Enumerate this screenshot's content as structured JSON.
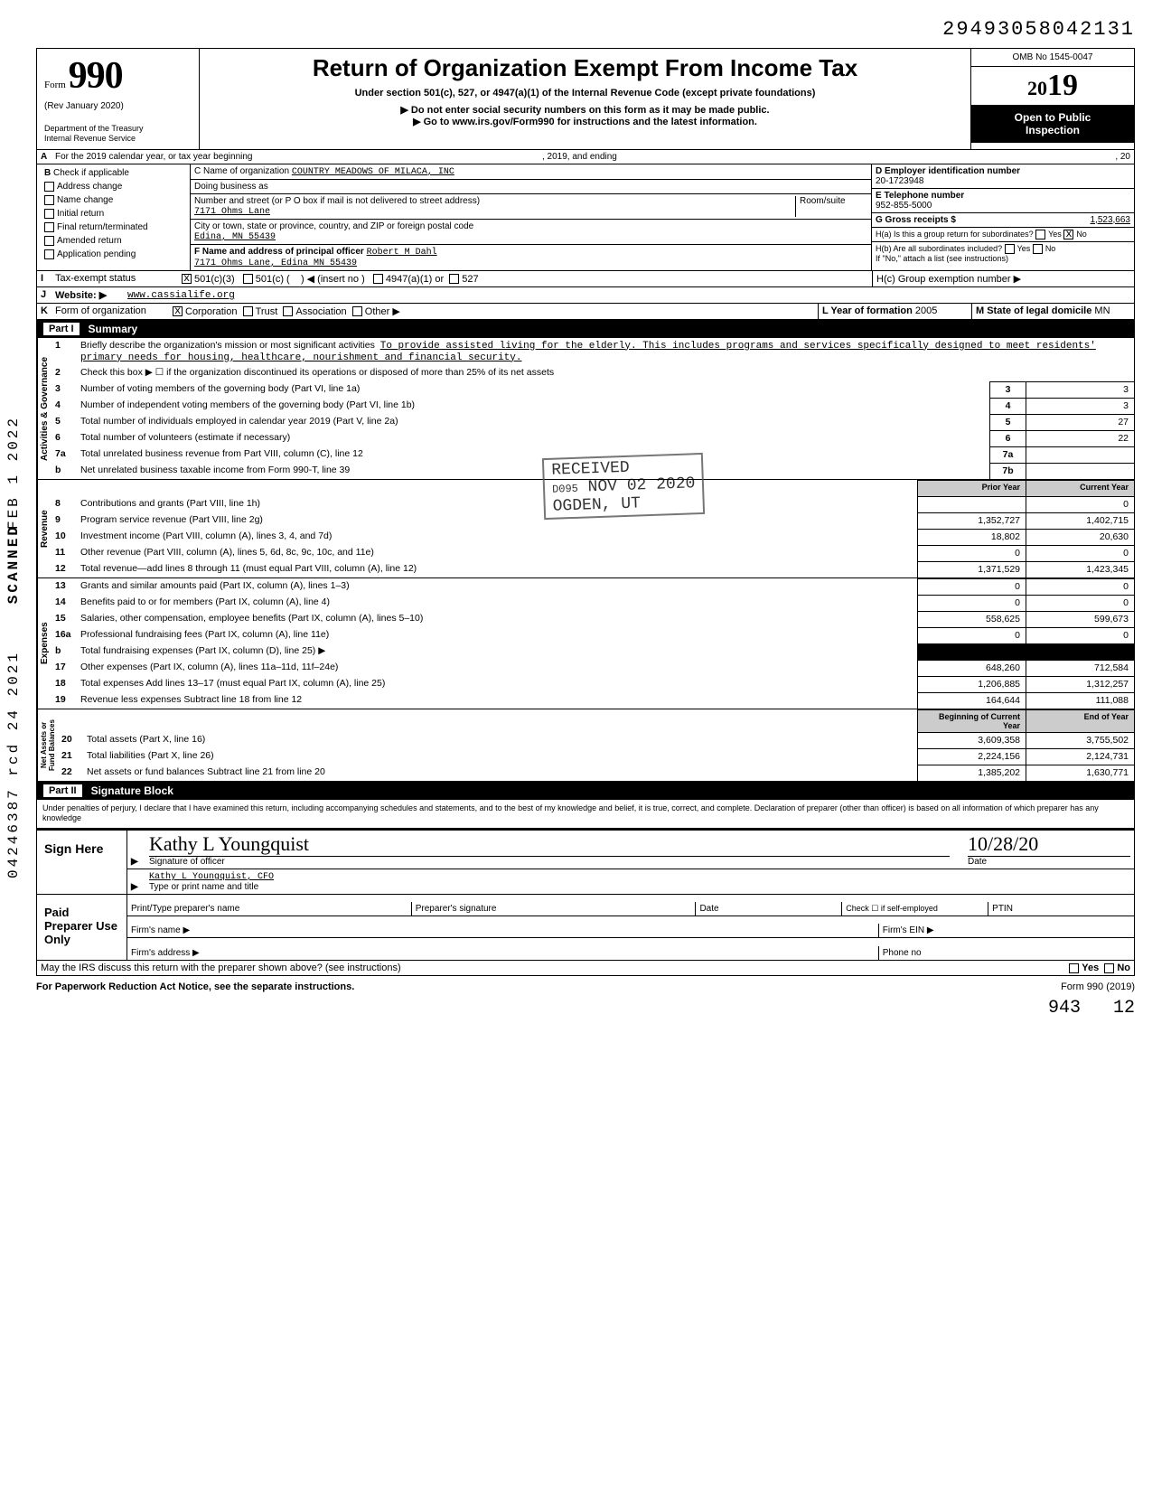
{
  "top_number": "29493058042131",
  "header": {
    "form_word": "Form",
    "form_num": "990",
    "rev": "(Rev January 2020)",
    "dept": "Department of the Treasury\nInternal Revenue Service",
    "title": "Return of Organization Exempt From Income Tax",
    "subtitle": "Under section 501(c), 527, or 4947(a)(1) of the Internal Revenue Code (except private foundations)",
    "warn1": "▶ Do not enter social security numbers on this form as it may be made public.",
    "warn2": "▶ Go to www.irs.gov/Form990 for instructions and the latest information.",
    "omb": "OMB No 1545-0047",
    "year": "2019",
    "open": "Open to Public Inspection"
  },
  "lineA": {
    "label": "For the 2019 calendar year, or tax year beginning",
    "mid": ", 2019, and ending",
    "end": ", 20"
  },
  "B": {
    "label": "Check if applicable",
    "options": [
      "Address change",
      "Name change",
      "Initial return",
      "Final return/terminated",
      "Amended return",
      "Application pending"
    ]
  },
  "C": {
    "name_label": "C Name of organization",
    "name": "COUNTRY MEADOWS OF MILACA, INC",
    "dba_label": "Doing business as",
    "addr_label": "Number and street (or P O box if mail is not delivered to street address)",
    "addr": "7171 Ohms Lane",
    "room_label": "Room/suite",
    "city_label": "City or town, state or province, country, and ZIP or foreign postal code",
    "city": "Edina, MN 55439",
    "F_label": "F Name and address of principal officer",
    "F_name": "Robert M Dahl",
    "F_addr": "7171 Ohms Lane, Edina MN 55439"
  },
  "D": {
    "ein_label": "D Employer identification number",
    "ein": "20-1723948",
    "tel_label": "E Telephone number",
    "tel": "952-855-5000",
    "gross_label": "G Gross receipts $",
    "gross": "1,523,663",
    "Ha": "H(a) Is this a group return for subordinates?",
    "Hb": "H(b) Are all subordinates included?",
    "Hb_note": "If \"No,\" attach a list (see instructions)",
    "Hc": "H(c) Group exemption number ▶",
    "yes": "Yes",
    "no": "No"
  },
  "I": {
    "label": "Tax-exempt status",
    "opt1": "501(c)(3)",
    "opt2": "501(c) (",
    "opt2b": ") ◀ (insert no )",
    "opt3": "4947(a)(1) or",
    "opt4": "527"
  },
  "J": {
    "label": "Website: ▶",
    "val": "www.cassialife.org"
  },
  "K": {
    "label": "Form of organization",
    "opts": [
      "Corporation",
      "Trust",
      "Association",
      "Other ▶"
    ],
    "L": "L Year of formation",
    "Lval": "2005",
    "M": "M State of legal domicile",
    "Mval": "MN"
  },
  "part1": {
    "num": "Part I",
    "title": "Summary"
  },
  "mission_lead": "Briefly describe the organization's mission or most significant activities",
  "mission": "To provide assisted living for the elderly. This includes programs and services specifically designed to meet residents' primary needs for housing, healthcare, nourishment and financial security.",
  "line2": "Check this box ▶ ☐ if the organization discontinued its operations or disposed of more than 25% of its net assets",
  "summary_lines": {
    "gov": [
      {
        "n": "3",
        "t": "Number of voting members of the governing body (Part VI, line 1a)",
        "k": "3",
        "v": "3"
      },
      {
        "n": "4",
        "t": "Number of independent voting members of the governing body (Part VI, line 1b)",
        "k": "4",
        "v": "3"
      },
      {
        "n": "5",
        "t": "Total number of individuals employed in calendar year 2019 (Part V, line 2a)",
        "k": "5",
        "v": "27"
      },
      {
        "n": "6",
        "t": "Total number of volunteers (estimate if necessary)",
        "k": "6",
        "v": "22"
      },
      {
        "n": "7a",
        "t": "Total unrelated business revenue from Part VIII, column (C), line 12",
        "k": "7a",
        "v": ""
      },
      {
        "n": "b",
        "t": "Net unrelated business taxable income from Form 990-T, line 39",
        "k": "7b",
        "v": ""
      }
    ],
    "rev_hdr_prior": "Prior Year",
    "rev_hdr_cur": "Current Year",
    "rev": [
      {
        "n": "8",
        "t": "Contributions and grants (Part VIII, line 1h)",
        "p": "",
        "c": "0"
      },
      {
        "n": "9",
        "t": "Program service revenue (Part VIII, line 2g)",
        "p": "1,352,727",
        "c": "1,402,715"
      },
      {
        "n": "10",
        "t": "Investment income (Part VIII, column (A), lines 3, 4, and 7d)",
        "p": "18,802",
        "c": "20,630"
      },
      {
        "n": "11",
        "t": "Other revenue (Part VIII, column (A), lines 5, 6d, 8c, 9c, 10c, and 11e)",
        "p": "0",
        "c": "0"
      },
      {
        "n": "12",
        "t": "Total revenue—add lines 8 through 11 (must equal Part VIII, column (A), line 12)",
        "p": "1,371,529",
        "c": "1,423,345"
      }
    ],
    "exp": [
      {
        "n": "13",
        "t": "Grants and similar amounts paid (Part IX, column (A), lines 1–3)",
        "p": "0",
        "c": "0"
      },
      {
        "n": "14",
        "t": "Benefits paid to or for members (Part IX, column (A), line 4)",
        "p": "0",
        "c": "0"
      },
      {
        "n": "15",
        "t": "Salaries, other compensation, employee benefits (Part IX, column (A), lines 5–10)",
        "p": "558,625",
        "c": "599,673"
      },
      {
        "n": "16a",
        "t": "Professional fundraising fees (Part IX, column (A), line 11e)",
        "p": "0",
        "c": "0"
      },
      {
        "n": "b",
        "t": "Total fundraising expenses (Part IX, column (D), line 25) ▶",
        "p": "BLACK",
        "c": "BLACK"
      },
      {
        "n": "17",
        "t": "Other expenses (Part IX, column (A), lines 11a–11d, 11f–24e)",
        "p": "648,260",
        "c": "712,584"
      },
      {
        "n": "18",
        "t": "Total expenses Add lines 13–17 (must equal Part IX, column (A), line 25)",
        "p": "1,206,885",
        "c": "1,312,257"
      },
      {
        "n": "19",
        "t": "Revenue less expenses Subtract line 18 from line 12",
        "p": "164,644",
        "c": "111,088"
      }
    ],
    "net_hdr_beg": "Beginning of Current Year",
    "net_hdr_end": "End of Year",
    "net": [
      {
        "n": "20",
        "t": "Total assets (Part X, line 16)",
        "p": "3,609,358",
        "c": "3,755,502"
      },
      {
        "n": "21",
        "t": "Total liabilities (Part X, line 26)",
        "p": "2,224,156",
        "c": "2,124,731"
      },
      {
        "n": "22",
        "t": "Net assets or fund balances Subtract line 21 from line 20",
        "p": "1,385,202",
        "c": "1,630,771"
      }
    ]
  },
  "tabs": {
    "gov": "Activities & Governance",
    "rev": "Revenue",
    "exp": "Expenses",
    "net": "Net Assets or\nFund Balances"
  },
  "part2": {
    "num": "Part II",
    "title": "Signature Block"
  },
  "perjury": "Under penalties of perjury, I declare that I have examined this return, including accompanying schedules and statements, and to the best of my knowledge and belief, it is true, correct, and complete. Declaration of preparer (other than officer) is based on all information of which preparer has any knowledge",
  "sign": {
    "here": "Sign Here",
    "sig_label": "Signature of officer",
    "sig_val": "Kathy L Youngquist",
    "date_label": "Date",
    "date_val": "10/28/20",
    "name_label": "Type or print name and title",
    "name_val": "Kathy L Youngquist, CFO"
  },
  "preparer": {
    "label": "Paid Preparer Use Only",
    "r1": [
      "Print/Type preparer's name",
      "Preparer's signature",
      "Date",
      "Check ☐ if self-employed",
      "PTIN"
    ],
    "r2a": "Firm's name ▶",
    "r2b": "Firm's EIN ▶",
    "r3a": "Firm's address ▶",
    "r3b": "Phone no"
  },
  "discuss": "May the IRS discuss this return with the preparer shown above? (see instructions)",
  "paperwork": "For Paperwork Reduction Act Notice, see the separate instructions.",
  "formfoot": "Form 990 (2019)",
  "stamps": {
    "received": "RECEIVED",
    "d095": "D095",
    "nov": "NOV 02 2020",
    "ogden": "OGDEN, UT"
  },
  "side": {
    "dln": "04246387 rcd 24 2021",
    "scanned": "SCANNED",
    "feb": "FEB 1 2022"
  },
  "hand": {
    "a": "943",
    "b": "12"
  },
  "colors": {
    "text": "#000000",
    "bg": "#ffffff",
    "shade": "#cccccc"
  }
}
